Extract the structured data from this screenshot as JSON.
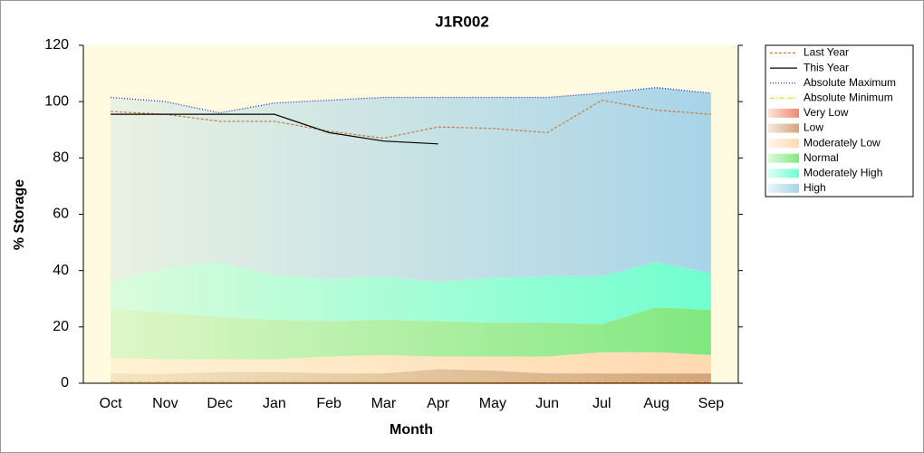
{
  "chart_data": {
    "type": "area",
    "title": "J1R002",
    "x_label": "Month",
    "y_label": "% Storage",
    "categories": [
      "Oct",
      "Nov",
      "Dec",
      "Jan",
      "Feb",
      "Mar",
      "Apr",
      "May",
      "Jun",
      "Jul",
      "Aug",
      "Sep"
    ],
    "ylim": [
      0,
      120
    ],
    "yticks": [
      0,
      20,
      40,
      60,
      80,
      100,
      120
    ],
    "background": "#fffbe0",
    "legend": "right",
    "series": [
      {
        "name": "Last Year",
        "type": "line",
        "style": "dashed",
        "color": "#c8783c",
        "values": [
          96.5,
          95.5,
          93,
          93,
          89.5,
          87,
          91,
          90.5,
          89,
          100.5,
          97,
          95.5
        ]
      },
      {
        "name": "This Year",
        "type": "line",
        "style": "solid",
        "color": "#000000",
        "values": [
          95.5,
          95.5,
          95.5,
          95.5,
          89,
          86,
          85,
          null,
          null,
          null,
          null,
          null
        ]
      },
      {
        "name": "Absolute Maximum",
        "type": "line",
        "style": "dotted",
        "color": "#1a1ad0",
        "values": [
          101.5,
          100,
          96,
          99.5,
          100.5,
          101.5,
          101.5,
          101.5,
          101.5,
          103,
          105,
          103
        ]
      },
      {
        "name": "Absolute Minimum",
        "type": "line",
        "style": "dashdot",
        "color": "#e8d800",
        "values": [
          0.5,
          0.5,
          0.5,
          0.5,
          0.5,
          0.5,
          0.5,
          0.5,
          0.5,
          0.5,
          0.5,
          0.5
        ]
      },
      {
        "name": "Very Low",
        "type": "area",
        "color": "#f08a70",
        "values": [
          1,
          1,
          1,
          1,
          1,
          1,
          1,
          1,
          1,
          1,
          1,
          1
        ]
      },
      {
        "name": "Low",
        "type": "area",
        "color": "#d2a67c",
        "values": [
          2.5,
          2.3,
          3,
          3,
          2.5,
          2.5,
          4,
          3.5,
          2.5,
          2.5,
          2.5,
          2.5
        ]
      },
      {
        "name": "Moderately Low",
        "type": "area",
        "color": "#ffd9b0",
        "values": [
          5.5,
          5.2,
          4.5,
          4.5,
          6,
          6.5,
          4.5,
          5,
          6,
          7.5,
          7.5,
          6.5
        ]
      },
      {
        "name": "Normal",
        "type": "area",
        "color": "#80e880",
        "values": [
          17.5,
          16.5,
          15,
          14,
          12.5,
          12.5,
          12.5,
          12,
          12,
          10,
          16,
          16
        ]
      },
      {
        "name": "Moderately High",
        "type": "area",
        "color": "#70ffd0",
        "values": [
          9.5,
          16,
          19.5,
          16,
          15,
          15.5,
          14,
          16,
          16.5,
          17,
          16,
          13
        ]
      },
      {
        "name": "High",
        "type": "area",
        "color": "#a8d4e8",
        "values": [
          65.5,
          59,
          53,
          61,
          63.5,
          63.5,
          65.5,
          64,
          63.5,
          65,
          62,
          64
        ]
      }
    ]
  }
}
